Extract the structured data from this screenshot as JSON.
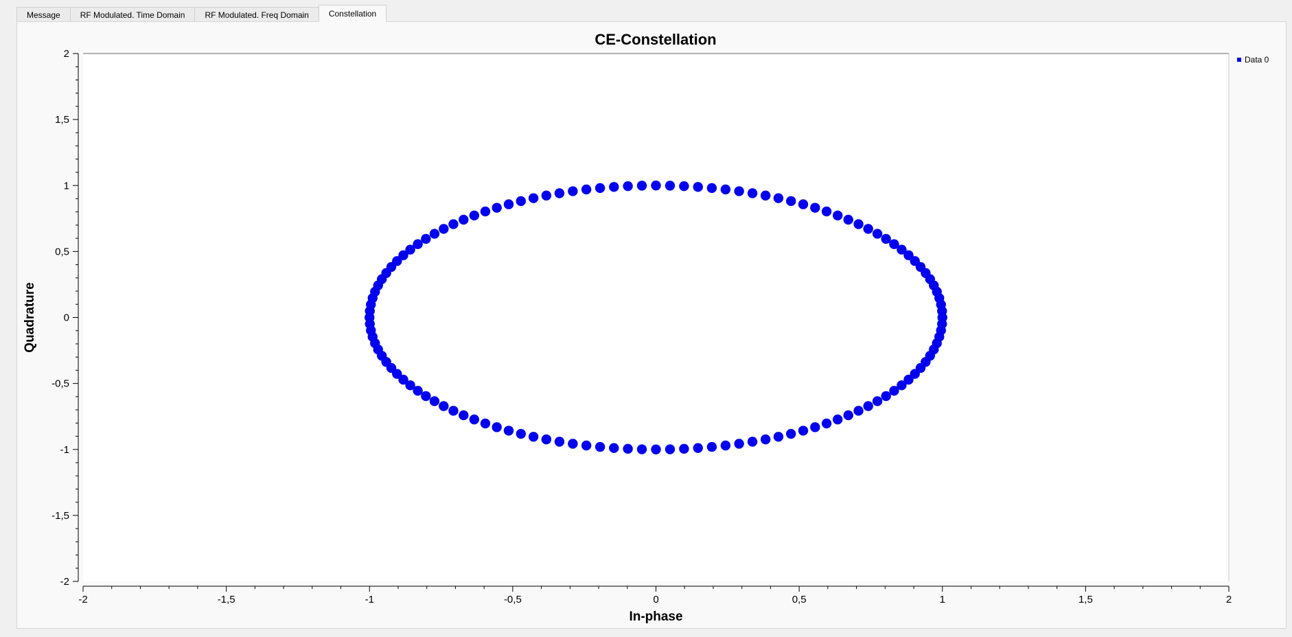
{
  "tabs": [
    {
      "label": "Message",
      "active": false
    },
    {
      "label": "RF Modulated. Time Domain",
      "active": false
    },
    {
      "label": "RF Modulated. Freq Domain",
      "active": false
    },
    {
      "label": "Constellation",
      "active": true
    }
  ],
  "colors": {
    "series": "#0000ee",
    "background": "#f0f0f0",
    "plot_background": "#ffffff"
  },
  "chart_data": {
    "type": "scatter",
    "title": "CE-Constellation",
    "xlabel": "In-phase",
    "ylabel": "Quadrature",
    "xlim": [
      -2,
      2
    ],
    "ylim": [
      -2,
      2
    ],
    "xticks": [
      "-2",
      "-1,5",
      "-1",
      "-0,5",
      "0",
      "0,5",
      "1",
      "1,5",
      "2"
    ],
    "yticks": [
      "2",
      "1,5",
      "1",
      "0,5",
      "0",
      "-0,5",
      "-1",
      "-1,5",
      "-2"
    ],
    "grid": false,
    "legend_position": "top-right",
    "series": [
      {
        "name": "Data 0",
        "shape": "unit circle",
        "point_count": 128,
        "x_range": [
          -1,
          1
        ],
        "y_range": [
          -1,
          1
        ]
      }
    ]
  }
}
